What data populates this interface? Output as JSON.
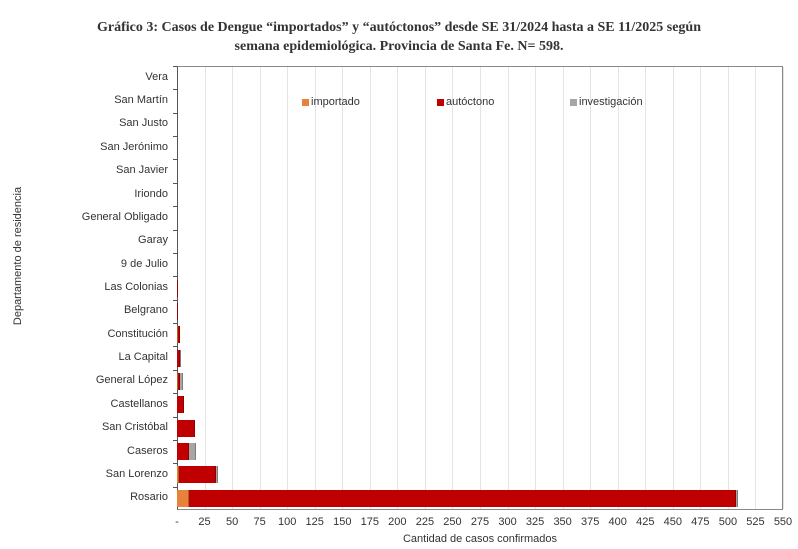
{
  "title_line1": "Gráfico 3: Casos de Dengue “importados” y “autóctonos” desde SE 31/2024 hasta a SE 11/2025 según",
  "title_line2": "semana epidemiológica. Provincia de Santa Fe. N= 598.",
  "colors": {
    "importado": "#e8823a",
    "autoctono": "#c00000",
    "investigacion": "#a6a6a6"
  },
  "legend": [
    {
      "label": "importado",
      "key": "importado"
    },
    {
      "label": "autóctono",
      "key": "autoctono"
    },
    {
      "label": "investigación",
      "key": "investigacion"
    }
  ],
  "chart_data": {
    "type": "bar",
    "orientation": "horizontal",
    "stacked": true,
    "title": "Gráfico 3: Casos de Dengue “importados” y “autóctonos” desde SE 31/2024 hasta a SE 11/2025 según semana epidemiológica. Provincia de Santa Fe. N= 598.",
    "xlabel": "Cantidad de casos confirmados",
    "ylabel": "Departamento de residencia",
    "xlim": [
      0,
      550
    ],
    "xticks": [
      "-",
      "25",
      "50",
      "75",
      "100",
      "125",
      "150",
      "175",
      "200",
      "225",
      "250",
      "275",
      "300",
      "325",
      "350",
      "375",
      "400",
      "425",
      "450",
      "475",
      "500",
      "525",
      "550"
    ],
    "grid": "vertical",
    "legend_position": "top-inside",
    "categories": [
      "Vera",
      "San Martín",
      "San Justo",
      "San Jerónimo",
      "San Javier",
      "Iriondo",
      "General Obligado",
      "Garay",
      "9 de Julio",
      "Las Colonias",
      "Belgrano",
      "Constitución",
      "La Capital",
      "General López",
      "Castellanos",
      "San Cristóbal",
      "Caseros",
      "San Lorenzo",
      "Rosario"
    ],
    "series": [
      {
        "name": "importado",
        "values": [
          0,
          0,
          0,
          0,
          0,
          0,
          0,
          0,
          0,
          0,
          0,
          1,
          0,
          1,
          0,
          0,
          0,
          2,
          11
        ]
      },
      {
        "name": "autóctono",
        "values": [
          0,
          0,
          0,
          0,
          0,
          0,
          0,
          0,
          0,
          1,
          1,
          2,
          3,
          2,
          6,
          16,
          11,
          33,
          496
        ]
      },
      {
        "name": "investigación",
        "values": [
          0,
          0,
          0,
          0,
          0,
          0,
          0,
          0,
          0,
          0,
          0,
          0,
          1,
          2,
          0,
          0,
          6,
          2,
          2
        ]
      }
    ]
  }
}
